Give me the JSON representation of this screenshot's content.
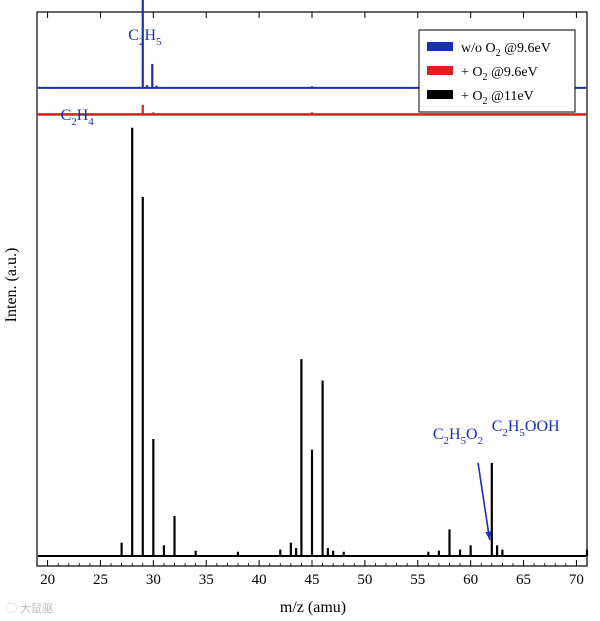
{
  "chart_data": {
    "type": "line",
    "xlabel": "m/z (amu)",
    "ylabel": "Inten. (a.u.)",
    "xlim": [
      19,
      71
    ],
    "x_ticks": [
      20,
      25,
      30,
      35,
      40,
      45,
      50,
      55,
      60,
      65,
      70
    ],
    "legend_position": "top-right",
    "series": [
      {
        "name": "w/o O2 @9.6eV",
        "legend": {
          "main": "w/o O",
          "sub": "2",
          "tail": " @9.6eV"
        },
        "color": "#1a2fb5",
        "baseline": 0.88,
        "peaks": [
          [
            29,
            0.92
          ],
          [
            29.9,
            0.045
          ],
          [
            29.4,
            0.005
          ],
          [
            30.3,
            0.004
          ],
          [
            45,
            0.003
          ],
          [
            56,
            0.004
          ],
          [
            56.4,
            0.003
          ],
          [
            57,
            0.003
          ]
        ]
      },
      {
        "name": "+ O2 @9.6eV",
        "legend": {
          "main": "+ O",
          "sub": "2",
          "tail": " @9.6eV"
        },
        "color": "#e02020",
        "baseline": 0.83,
        "peaks": [
          [
            29,
            0.018
          ],
          [
            30,
            0.004
          ],
          [
            45,
            0.004
          ]
        ]
      },
      {
        "name": "+ O2 @11eV",
        "legend": {
          "main": "+ O",
          "sub": "2",
          "tail": " @11eV"
        },
        "color": "#000000",
        "baseline": 0.0,
        "peaks": [
          [
            27,
            0.025
          ],
          [
            28,
            0.805
          ],
          [
            29,
            0.675
          ],
          [
            30,
            0.22
          ],
          [
            31,
            0.02
          ],
          [
            32,
            0.075
          ],
          [
            34,
            0.01
          ],
          [
            38,
            0.008
          ],
          [
            42,
            0.012
          ],
          [
            43,
            0.025
          ],
          [
            43.5,
            0.015
          ],
          [
            44,
            0.37
          ],
          [
            45,
            0.2
          ],
          [
            46,
            0.33
          ],
          [
            46.5,
            0.015
          ],
          [
            47,
            0.01
          ],
          [
            48,
            0.008
          ],
          [
            56,
            0.008
          ],
          [
            57,
            0.01
          ],
          [
            58,
            0.05
          ],
          [
            59,
            0.012
          ],
          [
            60,
            0.02
          ],
          [
            62,
            0.175
          ],
          [
            62.5,
            0.02
          ],
          [
            63,
            0.012
          ],
          [
            71,
            0.012
          ]
        ]
      }
    ],
    "annotations": [
      {
        "parts": [
          [
            "C",
            ""
          ],
          [
            "2",
            "sub"
          ],
          [
            "H",
            ""
          ],
          [
            "5",
            "sub"
          ]
        ],
        "x": 29.2,
        "y": 0.97
      },
      {
        "parts": [
          [
            "C",
            ""
          ],
          [
            "2",
            "sub"
          ],
          [
            "H",
            ""
          ],
          [
            "4",
            "sub"
          ]
        ],
        "x": 22.8,
        "y": 0.82
      },
      {
        "parts": [
          [
            "C",
            ""
          ],
          [
            "2",
            "sub"
          ],
          [
            "H",
            ""
          ],
          [
            "5",
            "sub"
          ],
          [
            "O",
            ""
          ],
          [
            "2",
            "sub"
          ]
        ],
        "x": 58.8,
        "y": 0.22
      },
      {
        "parts": [
          [
            "C",
            ""
          ],
          [
            "2",
            "sub"
          ],
          [
            "H",
            ""
          ],
          [
            "5",
            "sub"
          ],
          [
            "OOH",
            ""
          ]
        ],
        "x": 65.2,
        "y": 0.235
      }
    ],
    "arrow": {
      "from": [
        60.7,
        0.175
      ],
      "to": [
        61.8,
        0.03
      ]
    }
  },
  "watermark": "大鼠驱",
  "icons": {
    "watermark": "camera-icon"
  }
}
